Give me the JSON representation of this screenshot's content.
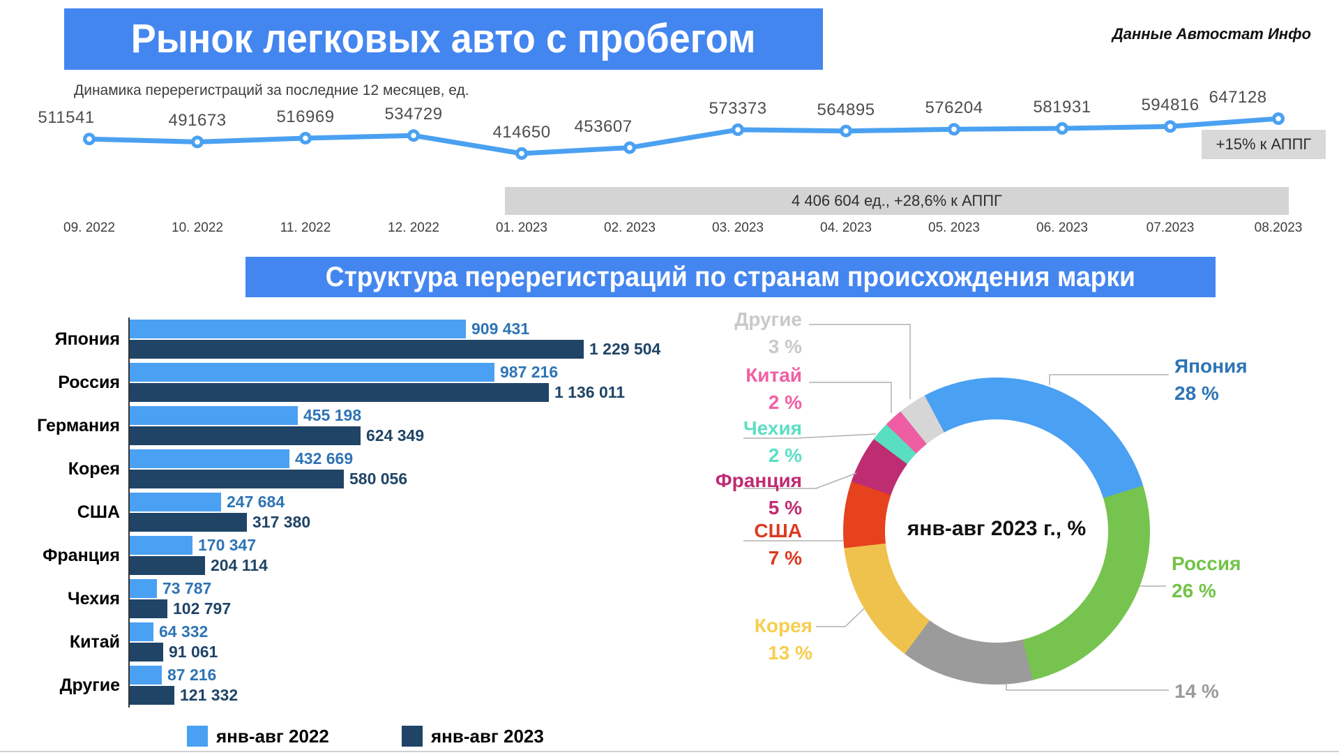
{
  "header": {
    "title": "Рынок легковых авто с пробегом",
    "source_note": "Данные Автостат Инфо"
  },
  "line_section": {
    "subtitle": "Динамика перерегистраций за последние 12 месяцев, ед.",
    "growth_annotation": "+15% к АППГ",
    "summary_annotation": "4 406 604 ед., +28,6% к АППГ",
    "line_color": "#4BA1F1"
  },
  "structure_section": {
    "title": "Структура перерегистраций по странам происхождения марки",
    "donut_center_label": "янв-авг 2023 г., %"
  },
  "legend": {
    "items": [
      {
        "label": "янв-авг 2022",
        "color": "#4AA0F2"
      },
      {
        "label": "янв-авг 2023",
        "color": "#1F4466"
      }
    ]
  },
  "chart_data": [
    {
      "type": "line",
      "title": "Динамика перерегистраций за последние 12 месяцев, ед.",
      "x": [
        "09. 2022",
        "10. 2022",
        "11. 2022",
        "12. 2022",
        "01. 2023",
        "02. 2023",
        "03. 2023",
        "04. 2023",
        "05. 2023",
        "06. 2023",
        "07.2023",
        "08.2023"
      ],
      "values": [
        511541,
        491673,
        516969,
        534729,
        414650,
        453607,
        573373,
        564895,
        576204,
        581931,
        594816,
        647128
      ],
      "annotations": [
        "+15% к АППГ",
        "4 406 604 ед., +28,6% к АППГ"
      ],
      "line_color": "#4BA1F1",
      "marker_style": "ring"
    },
    {
      "type": "bar",
      "orientation": "horizontal",
      "title": "Структура перерегистраций по странам происхождения марки",
      "categories": [
        "Япония",
        "Россия",
        "Германия",
        "Корея",
        "США",
        "Франция",
        "Чехия",
        "Китай",
        "Другие"
      ],
      "series": [
        {
          "name": "янв-авг 2022",
          "color": "#4AA0F2",
          "label_color": "#2E74B5",
          "values": [
            909431,
            987216,
            455198,
            432669,
            247684,
            170347,
            73787,
            64332,
            87216
          ]
        },
        {
          "name": "янв-авг 2023",
          "color": "#1F4466",
          "label_color": "#1F4466",
          "values": [
            1229504,
            1136011,
            624349,
            580056,
            317380,
            204114,
            102797,
            91061,
            121332
          ]
        }
      ],
      "xmax": 1229504
    },
    {
      "type": "pie",
      "title": "янв-авг 2023 г., %",
      "labels": [
        "Япония",
        "Россия",
        "",
        "Корея",
        "США",
        "Франция",
        "Чехия",
        "Китай",
        "Другие"
      ],
      "values": [
        28,
        26,
        14,
        13,
        7,
        5,
        2,
        2,
        3
      ],
      "colors": [
        "#4AA0F2",
        "#76C44F",
        "#9B9B9B",
        "#EFC24D",
        "#E5421D",
        "#BE2C72",
        "#59DEC1",
        "#EE5DA1",
        "#D6D6D6"
      ],
      "label_colors": [
        "#2E74B5",
        "#72C348",
        "#9B9B9B",
        "#F6CE4F",
        "#DC3A20",
        "#C02B72",
        "#5CDFC4",
        "#F060A3",
        "#C9C9C9"
      ],
      "start_angle_deg": -28,
      "legend_position": "callouts"
    }
  ]
}
